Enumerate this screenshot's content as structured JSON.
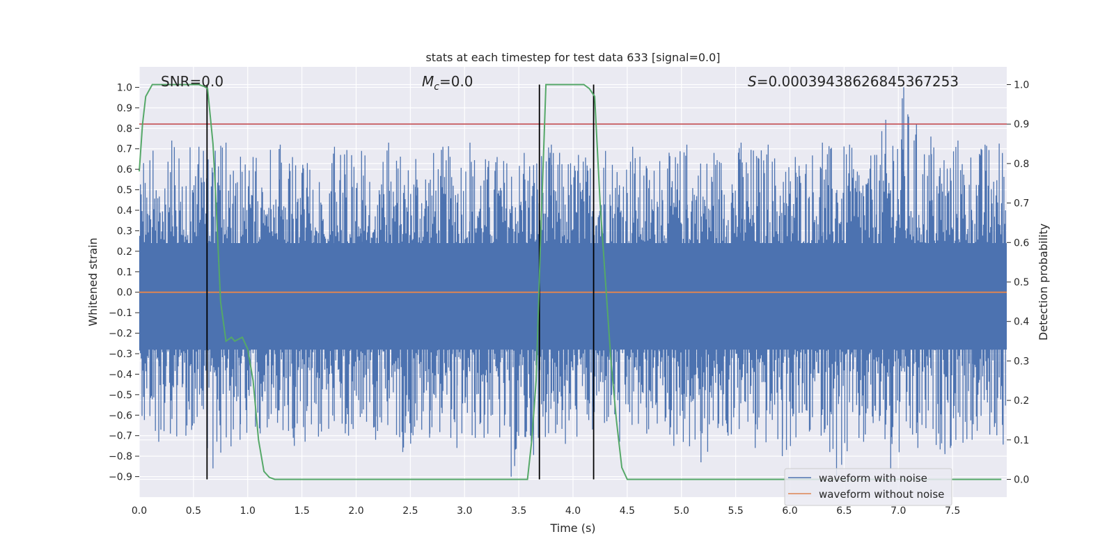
{
  "chart_data": {
    "type": "line",
    "title": "stats at each timestep for test data 633 [signal=0.0]",
    "xlabel": "Time (s)",
    "ylabel": "Whitened strain",
    "ylabel_right": "Detection probability",
    "xlim": [
      0.0,
      8.0
    ],
    "ylim": [
      -1.0,
      1.1
    ],
    "ylim_right": [
      -0.045,
      1.045
    ],
    "x_ticks": [
      "0.0",
      "0.5",
      "1.0",
      "1.5",
      "2.0",
      "2.5",
      "3.0",
      "3.5",
      "4.0",
      "4.5",
      "5.0",
      "5.5",
      "6.0",
      "6.5",
      "7.0",
      "7.5"
    ],
    "y_ticks": [
      "−0.9",
      "−0.8",
      "−0.7",
      "−0.6",
      "−0.5",
      "−0.4",
      "−0.3",
      "−0.2",
      "−0.1",
      "0.0",
      "0.1",
      "0.2",
      "0.3",
      "0.4",
      "0.5",
      "0.6",
      "0.7",
      "0.8",
      "0.9",
      "1.0"
    ],
    "y_ticks_right": [
      "0.0",
      "0.1",
      "0.2",
      "0.3",
      "0.4",
      "0.5",
      "0.6",
      "0.7",
      "0.8",
      "0.9",
      "1.0"
    ],
    "annotations": {
      "snr": "SNR=0.0",
      "mc_symbol": "M",
      "mc_sub": "c",
      "mc_value": "=0.0",
      "s_symbol": "S",
      "s_value": "=0.0003943862684536725​3"
    },
    "threshold_line_right": 0.9,
    "vertical_lines_x": [
      0.625,
      3.69,
      4.19
    ],
    "series": [
      {
        "name": "waveform with noise",
        "color": "#4c72b0",
        "axis": "left",
        "envelope": {
          "x": [
            0.0,
            0.25,
            0.5,
            0.75,
            1.0,
            1.25,
            1.5,
            1.75,
            2.0,
            2.25,
            2.5,
            2.75,
            3.0,
            3.25,
            3.5,
            3.75,
            4.0,
            4.25,
            4.5,
            4.75,
            5.0,
            5.25,
            5.5,
            5.75,
            6.0,
            6.25,
            6.5,
            6.75,
            7.0,
            7.25,
            7.5,
            7.75,
            8.0
          ],
          "max": [
            0.65,
            0.74,
            0.71,
            0.73,
            0.66,
            0.72,
            0.63,
            0.71,
            0.69,
            0.73,
            0.65,
            0.71,
            0.73,
            0.66,
            0.68,
            0.72,
            0.67,
            0.69,
            0.71,
            0.64,
            0.72,
            0.68,
            0.73,
            0.72,
            0.66,
            0.73,
            0.72,
            0.67,
            1.0,
            0.76,
            0.74,
            0.72,
            0.79
          ],
          "min": [
            -0.62,
            -0.73,
            -0.7,
            -0.86,
            -0.72,
            -0.66,
            -0.75,
            -0.68,
            -0.7,
            -0.72,
            -0.78,
            -0.69,
            -0.76,
            -0.71,
            -0.9,
            -0.71,
            -0.74,
            -0.67,
            -0.73,
            -0.69,
            -0.75,
            -0.83,
            -0.7,
            -0.76,
            -0.8,
            -0.68,
            -0.9,
            -0.73,
            -0.86,
            -0.76,
            -0.79,
            -0.72,
            -0.76
          ]
        }
      },
      {
        "name": "waveform without noise",
        "color": "#dd8452",
        "axis": "left",
        "x": [
          0.0,
          8.0
        ],
        "y": [
          0.0,
          0.0
        ]
      },
      {
        "name": "",
        "color": "#55a868",
        "axis": "right",
        "x": [
          0.0,
          0.03,
          0.06,
          0.12,
          0.2,
          0.3,
          0.4,
          0.5,
          0.55,
          0.6,
          0.63,
          0.68,
          0.7,
          0.75,
          0.8,
          0.85,
          0.88,
          0.95,
          1.0,
          1.05,
          1.1,
          1.15,
          1.2,
          1.25,
          1.5,
          2.0,
          2.5,
          3.0,
          3.5,
          3.58,
          3.62,
          3.66,
          3.7,
          3.75,
          3.8,
          4.0,
          4.1,
          4.15,
          4.2,
          4.25,
          4.3,
          4.35,
          4.4,
          4.45,
          4.5,
          5.0,
          6.0,
          7.0,
          7.95
        ],
        "y": [
          0.78,
          0.9,
          0.97,
          1.0,
          1.0,
          1.0,
          1.0,
          1.0,
          1.0,
          0.995,
          0.99,
          0.85,
          0.75,
          0.45,
          0.35,
          0.36,
          0.35,
          0.36,
          0.33,
          0.25,
          0.1,
          0.02,
          0.005,
          0.0,
          0.0,
          0.0,
          0.0,
          0.0,
          0.0,
          0.0,
          0.1,
          0.25,
          0.6,
          1.0,
          1.0,
          1.0,
          1.0,
          0.99,
          0.97,
          0.7,
          0.5,
          0.3,
          0.15,
          0.03,
          0.0,
          0.0,
          0.0,
          0.0,
          0.0
        ]
      }
    ],
    "legend": {
      "placement": "lower-right",
      "entries": [
        "waveform with noise",
        "waveform without noise"
      ]
    },
    "colors": {
      "background": "#eaeaf2",
      "grid": "#ffffff",
      "threshold": "#c44e52",
      "vertical": "#000000"
    }
  }
}
